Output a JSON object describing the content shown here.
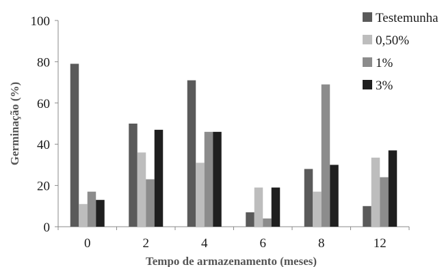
{
  "chart_data": {
    "type": "bar",
    "title": "",
    "xlabel": "Tempo de armazenamento (meses)",
    "ylabel": "Germinação (%)",
    "ylim": [
      0,
      100
    ],
    "yticks": [
      "0",
      "20",
      "40",
      "60",
      "80",
      "100"
    ],
    "grid": false,
    "legend_position": "top-right",
    "categories": [
      "0",
      "2",
      "4",
      "6",
      "8",
      "12"
    ],
    "series": [
      {
        "name": "Testemunha",
        "color": "#5a5a5a",
        "values": [
          79,
          50,
          71,
          7,
          28,
          10
        ]
      },
      {
        "name": "0,50%",
        "color": "#bdbdbd",
        "values": [
          11,
          36,
          31,
          19,
          17,
          33.5
        ]
      },
      {
        "name": "1%",
        "color": "#8c8c8c",
        "values": [
          17,
          23,
          46,
          4,
          69,
          24
        ]
      },
      {
        "name": "3%",
        "color": "#1f1f1f",
        "values": [
          13,
          47,
          46,
          19,
          30,
          37
        ]
      }
    ]
  }
}
